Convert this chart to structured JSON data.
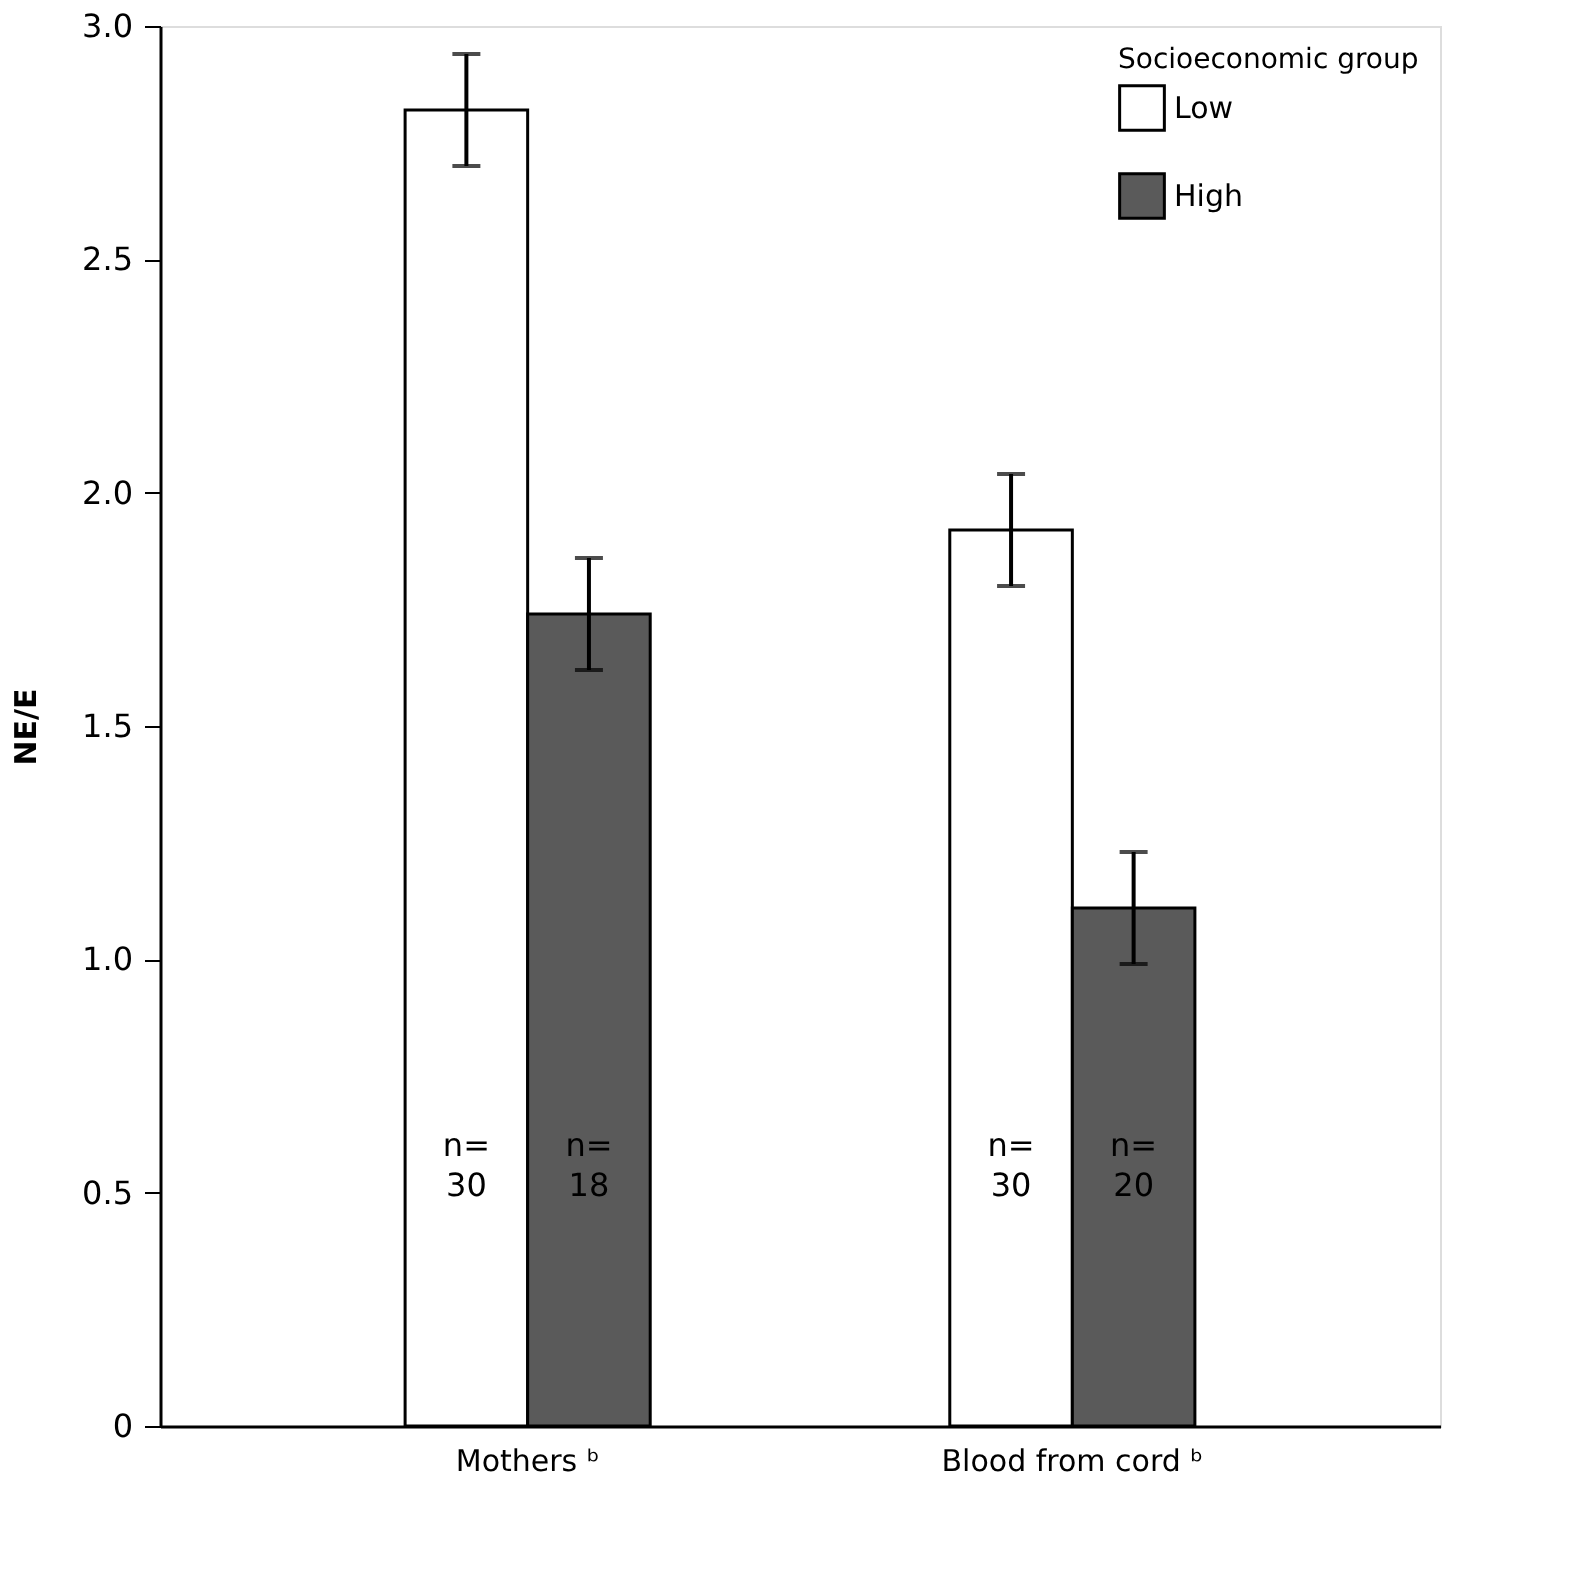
{
  "chart_data": {
    "type": "bar",
    "ylabel": "NE/E",
    "legend_title": "Socioeconomic group",
    "legend": "top right",
    "grid": false,
    "categories": [
      "Mothers ᵇ",
      "Blood from cord ᵇ"
    ],
    "series": [
      {
        "name": "Low",
        "color": "#ffffff",
        "values": [
          2.82,
          1.92
        ],
        "errors": [
          0.12,
          0.12
        ]
      },
      {
        "name": "High",
        "color": "#5a5a5a",
        "values": [
          1.74,
          1.11
        ],
        "errors": [
          0.12,
          0.12
        ]
      }
    ],
    "ylim": [
      0,
      3.0
    ],
    "yticks": [
      {
        "value": 0,
        "label": "0"
      },
      0.5,
      {
        "value": 1,
        "label": "1.0"
      },
      1.5,
      {
        "value": 2,
        "label": "2.0"
      },
      2.5,
      {
        "value": 3,
        "label": "3.0"
      }
    ],
    "annotations": [
      "n=\n30",
      "n=\n18",
      "n=\n30",
      "n=\n20"
    ]
  }
}
